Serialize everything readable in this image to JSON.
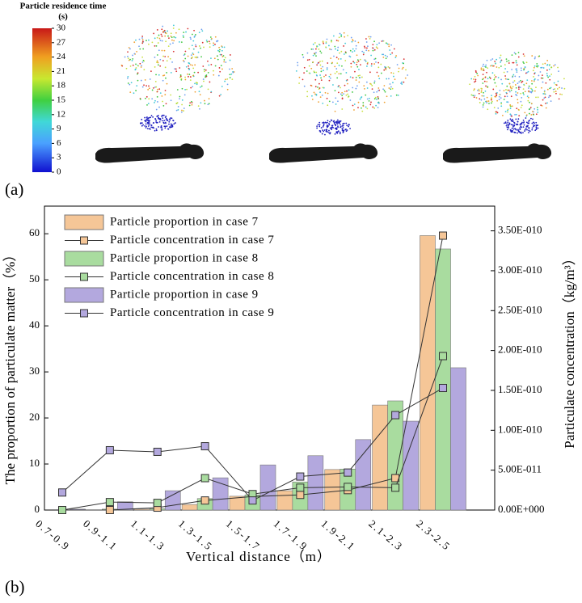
{
  "panel_a": {
    "label": "(a)",
    "colorbar": {
      "title": "Particle residence time",
      "unit": "(s)",
      "ticks": [
        0,
        3,
        6,
        9,
        12,
        15,
        18,
        21,
        24,
        27,
        30
      ],
      "lim": [
        0,
        30
      ]
    }
  },
  "panel_b": {
    "label": "(b)"
  },
  "chart_data": {
    "type": "bar",
    "x_label": "Vertical distance（m）",
    "y_label": "The proportion of particulate matter（%）",
    "y2_label": "Particulate concentration（kg/m³）",
    "categories": [
      "0.7-0.9",
      "0.9-1.1",
      "1.1-1.3",
      "1.3-1.5",
      "1.5-1.7",
      "1.7-1.9",
      "1.9-2.1",
      "2.1-2.3",
      "2.3-2.5"
    ],
    "ylim": [
      0,
      66
    ],
    "yticks": [
      0,
      10,
      20,
      30,
      40,
      50,
      60
    ],
    "y2lim": [
      0,
      3.81e-10
    ],
    "y2ticks": [
      {
        "value": 0,
        "label": "0.00E+000"
      },
      {
        "value": 5e-11,
        "label": "5.00E-011"
      },
      {
        "value": 1e-10,
        "label": "1.00E-010"
      },
      {
        "value": 1.5e-10,
        "label": "1.50E-010"
      },
      {
        "value": 2e-10,
        "label": "2.00E-010"
      },
      {
        "value": 2.5e-10,
        "label": "2.50E-010"
      },
      {
        "value": 3e-10,
        "label": "3.00E-010"
      },
      {
        "value": 3.5e-10,
        "label": "3.50E-010"
      }
    ],
    "legend": "upper left",
    "series": [
      {
        "name": "Particle proportion in case 7",
        "type": "bar",
        "color": "#f5c697",
        "values": [
          0,
          0,
          0.2,
          1.2,
          3.0,
          4.2,
          8.8,
          22.8,
          59.6
        ]
      },
      {
        "name": "Particle concentration in case 7",
        "type": "line",
        "axis": "y2",
        "color": "#f5c697",
        "values": [
          0,
          0,
          3e-12,
          1.2e-11,
          1.7e-11,
          1.9e-11,
          2.5e-11,
          4e-11,
          3.44e-10
        ]
      },
      {
        "name": "Particle proportion in case 8",
        "type": "bar",
        "color": "#a9dc9f",
        "values": [
          0,
          0.2,
          0.3,
          2.5,
          3.3,
          6.1,
          8.9,
          23.7,
          56.7
        ]
      },
      {
        "name": "Particle concentration in case 8",
        "type": "line",
        "axis": "y2",
        "color": "#a9dc9f",
        "values": [
          0,
          1e-11,
          9e-12,
          4e-11,
          2e-11,
          2.8e-11,
          2.9e-11,
          2.8e-11,
          1.93e-10
        ]
      },
      {
        "name": "Particle proportion in case 9",
        "type": "bar",
        "color": "#b3a8de",
        "values": [
          0.2,
          1.8,
          4.2,
          7.0,
          9.8,
          11.8,
          15.3,
          19.3,
          30.9
        ]
      },
      {
        "name": "Particle concentration in case 9",
        "type": "line",
        "axis": "y2",
        "color": "#b3a8de",
        "values": [
          2.2e-11,
          7.5e-11,
          7.3e-11,
          8e-11,
          1.2e-11,
          4.2e-11,
          4.7e-11,
          1.19e-10,
          1.53e-10
        ]
      }
    ]
  }
}
